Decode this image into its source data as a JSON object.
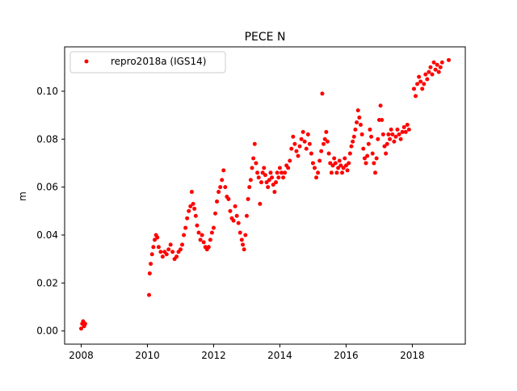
{
  "chart_data": {
    "type": "scatter",
    "title": "PECE N",
    "xlabel": "",
    "ylabel": "m",
    "xlim": [
      2007.5,
      2019.6
    ],
    "ylim": [
      -0.0055,
      0.1185
    ],
    "xticks": [
      2008,
      2010,
      2012,
      2014,
      2016,
      2018
    ],
    "yticks": [
      0.0,
      0.02,
      0.04,
      0.06,
      0.08,
      0.1
    ],
    "ytick_labels": [
      "0.00",
      "0.02",
      "0.04",
      "0.06",
      "0.08",
      "0.10"
    ],
    "grid": false,
    "legend_position": "top-left",
    "series": [
      {
        "name": "repro2018a (IGS14)",
        "color": "#ff0000",
        "marker": "circle",
        "points": [
          [
            2008.0,
            0.001
          ],
          [
            2008.03,
            0.003
          ],
          [
            2008.06,
            0.004
          ],
          [
            2008.09,
            0.002
          ],
          [
            2008.12,
            0.003
          ],
          [
            2010.05,
            0.015
          ],
          [
            2010.07,
            0.024
          ],
          [
            2010.1,
            0.028
          ],
          [
            2010.14,
            0.032
          ],
          [
            2010.18,
            0.035
          ],
          [
            2010.22,
            0.038
          ],
          [
            2010.26,
            0.04
          ],
          [
            2010.3,
            0.039
          ],
          [
            2010.34,
            0.035
          ],
          [
            2010.4,
            0.033
          ],
          [
            2010.46,
            0.031
          ],
          [
            2010.52,
            0.033
          ],
          [
            2010.58,
            0.032
          ],
          [
            2010.64,
            0.034
          ],
          [
            2010.7,
            0.036
          ],
          [
            2010.76,
            0.033
          ],
          [
            2010.82,
            0.03
          ],
          [
            2010.88,
            0.031
          ],
          [
            2010.94,
            0.033
          ],
          [
            2011.0,
            0.034
          ],
          [
            2011.05,
            0.036
          ],
          [
            2011.1,
            0.04
          ],
          [
            2011.15,
            0.043
          ],
          [
            2011.2,
            0.047
          ],
          [
            2011.25,
            0.05
          ],
          [
            2011.3,
            0.052
          ],
          [
            2011.34,
            0.058
          ],
          [
            2011.38,
            0.053
          ],
          [
            2011.42,
            0.051
          ],
          [
            2011.46,
            0.048
          ],
          [
            2011.5,
            0.044
          ],
          [
            2011.55,
            0.041
          ],
          [
            2011.6,
            0.038
          ],
          [
            2011.65,
            0.04
          ],
          [
            2011.7,
            0.037
          ],
          [
            2011.75,
            0.035
          ],
          [
            2011.8,
            0.034
          ],
          [
            2011.85,
            0.035
          ],
          [
            2011.9,
            0.038
          ],
          [
            2011.95,
            0.041
          ],
          [
            2012.0,
            0.043
          ],
          [
            2012.05,
            0.049
          ],
          [
            2012.1,
            0.054
          ],
          [
            2012.15,
            0.058
          ],
          [
            2012.2,
            0.06
          ],
          [
            2012.25,
            0.063
          ],
          [
            2012.3,
            0.067
          ],
          [
            2012.35,
            0.06
          ],
          [
            2012.4,
            0.056
          ],
          [
            2012.45,
            0.055
          ],
          [
            2012.5,
            0.05
          ],
          [
            2012.55,
            0.047
          ],
          [
            2012.6,
            0.046
          ],
          [
            2012.65,
            0.052
          ],
          [
            2012.7,
            0.048
          ],
          [
            2012.75,
            0.045
          ],
          [
            2012.8,
            0.041
          ],
          [
            2012.85,
            0.038
          ],
          [
            2012.88,
            0.036
          ],
          [
            2012.92,
            0.034
          ],
          [
            2012.96,
            0.04
          ],
          [
            2013.0,
            0.048
          ],
          [
            2013.04,
            0.055
          ],
          [
            2013.08,
            0.06
          ],
          [
            2013.12,
            0.063
          ],
          [
            2013.16,
            0.068
          ],
          [
            2013.2,
            0.072
          ],
          [
            2013.24,
            0.078
          ],
          [
            2013.28,
            0.07
          ],
          [
            2013.32,
            0.066
          ],
          [
            2013.36,
            0.064
          ],
          [
            2013.4,
            0.053
          ],
          [
            2013.44,
            0.062
          ],
          [
            2013.48,
            0.066
          ],
          [
            2013.52,
            0.068
          ],
          [
            2013.56,
            0.065
          ],
          [
            2013.6,
            0.062
          ],
          [
            2013.64,
            0.06
          ],
          [
            2013.68,
            0.063
          ],
          [
            2013.72,
            0.066
          ],
          [
            2013.76,
            0.064
          ],
          [
            2013.8,
            0.061
          ],
          [
            2013.84,
            0.058
          ],
          [
            2013.88,
            0.062
          ],
          [
            2013.92,
            0.066
          ],
          [
            2013.96,
            0.064
          ],
          [
            2014.0,
            0.068
          ],
          [
            2014.05,
            0.066
          ],
          [
            2014.1,
            0.064
          ],
          [
            2014.15,
            0.066
          ],
          [
            2014.2,
            0.069
          ],
          [
            2014.25,
            0.068
          ],
          [
            2014.3,
            0.071
          ],
          [
            2014.35,
            0.076
          ],
          [
            2014.4,
            0.081
          ],
          [
            2014.45,
            0.078
          ],
          [
            2014.5,
            0.075
          ],
          [
            2014.55,
            0.073
          ],
          [
            2014.6,
            0.077
          ],
          [
            2014.65,
            0.08
          ],
          [
            2014.7,
            0.083
          ],
          [
            2014.75,
            0.079
          ],
          [
            2014.8,
            0.076
          ],
          [
            2014.85,
            0.082
          ],
          [
            2014.9,
            0.078
          ],
          [
            2014.95,
            0.074
          ],
          [
            2015.0,
            0.07
          ],
          [
            2015.05,
            0.068
          ],
          [
            2015.1,
            0.064
          ],
          [
            2015.15,
            0.066
          ],
          [
            2015.2,
            0.071
          ],
          [
            2015.25,
            0.075
          ],
          [
            2015.28,
            0.099
          ],
          [
            2015.32,
            0.078
          ],
          [
            2015.36,
            0.08
          ],
          [
            2015.4,
            0.083
          ],
          [
            2015.44,
            0.079
          ],
          [
            2015.48,
            0.074
          ],
          [
            2015.52,
            0.07
          ],
          [
            2015.56,
            0.066
          ],
          [
            2015.6,
            0.069
          ],
          [
            2015.64,
            0.072
          ],
          [
            2015.68,
            0.07
          ],
          [
            2015.72,
            0.066
          ],
          [
            2015.76,
            0.068
          ],
          [
            2015.8,
            0.071
          ],
          [
            2015.84,
            0.069
          ],
          [
            2015.88,
            0.066
          ],
          [
            2015.92,
            0.068
          ],
          [
            2015.96,
            0.072
          ],
          [
            2016.0,
            0.069
          ],
          [
            2016.04,
            0.067
          ],
          [
            2016.08,
            0.07
          ],
          [
            2016.12,
            0.074
          ],
          [
            2016.16,
            0.077
          ],
          [
            2016.2,
            0.079
          ],
          [
            2016.24,
            0.081
          ],
          [
            2016.28,
            0.084
          ],
          [
            2016.32,
            0.087
          ],
          [
            2016.36,
            0.092
          ],
          [
            2016.4,
            0.089
          ],
          [
            2016.44,
            0.086
          ],
          [
            2016.48,
            0.082
          ],
          [
            2016.52,
            0.076
          ],
          [
            2016.56,
            0.072
          ],
          [
            2016.6,
            0.07
          ],
          [
            2016.64,
            0.073
          ],
          [
            2016.68,
            0.078
          ],
          [
            2016.72,
            0.084
          ],
          [
            2016.76,
            0.081
          ],
          [
            2016.8,
            0.074
          ],
          [
            2016.84,
            0.07
          ],
          [
            2016.88,
            0.066
          ],
          [
            2016.92,
            0.072
          ],
          [
            2016.96,
            0.08
          ],
          [
            2017.0,
            0.088
          ],
          [
            2017.04,
            0.094
          ],
          [
            2017.08,
            0.088
          ],
          [
            2017.12,
            0.082
          ],
          [
            2017.16,
            0.077
          ],
          [
            2017.2,
            0.074
          ],
          [
            2017.24,
            0.078
          ],
          [
            2017.28,
            0.082
          ],
          [
            2017.32,
            0.08
          ],
          [
            2017.36,
            0.084
          ],
          [
            2017.4,
            0.082
          ],
          [
            2017.45,
            0.079
          ],
          [
            2017.5,
            0.081
          ],
          [
            2017.55,
            0.084
          ],
          [
            2017.6,
            0.082
          ],
          [
            2017.65,
            0.08
          ],
          [
            2017.7,
            0.083
          ],
          [
            2017.75,
            0.085
          ],
          [
            2017.8,
            0.083
          ],
          [
            2017.85,
            0.086
          ],
          [
            2017.9,
            0.084
          ],
          [
            2018.05,
            0.101
          ],
          [
            2018.1,
            0.098
          ],
          [
            2018.15,
            0.103
          ],
          [
            2018.2,
            0.106
          ],
          [
            2018.25,
            0.104
          ],
          [
            2018.3,
            0.101
          ],
          [
            2018.35,
            0.103
          ],
          [
            2018.4,
            0.107
          ],
          [
            2018.45,
            0.105
          ],
          [
            2018.5,
            0.108
          ],
          [
            2018.55,
            0.11
          ],
          [
            2018.6,
            0.107
          ],
          [
            2018.65,
            0.112
          ],
          [
            2018.7,
            0.109
          ],
          [
            2018.75,
            0.111
          ],
          [
            2018.8,
            0.108
          ],
          [
            2018.85,
            0.11
          ],
          [
            2018.9,
            0.112
          ],
          [
            2019.1,
            0.113
          ]
        ]
      }
    ]
  }
}
